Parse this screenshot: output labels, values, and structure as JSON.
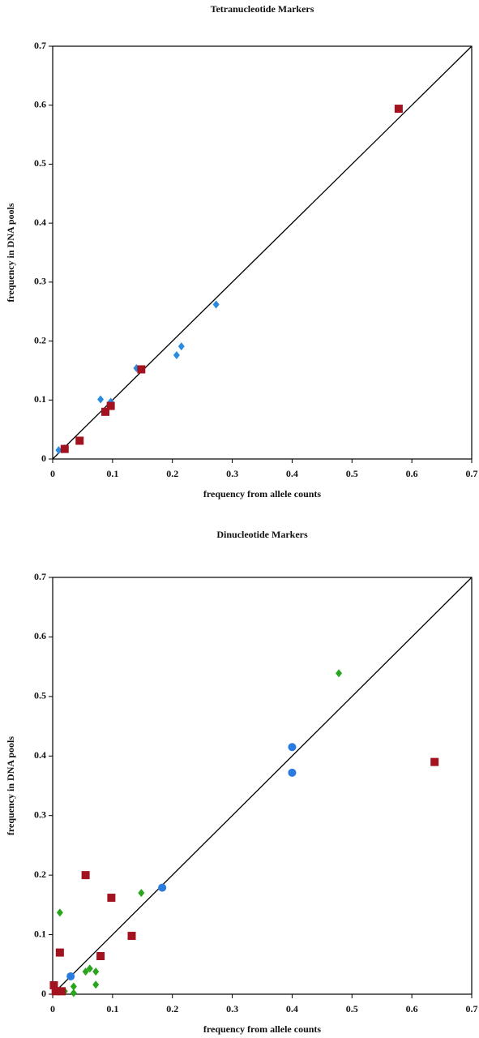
{
  "chart_data": [
    {
      "type": "scatter",
      "title": "Tetranucleotide Markers",
      "x_label": "frequency from allele counts",
      "y_label": "frequency in DNA pools",
      "xlim": [
        0,
        0.7
      ],
      "ylim": [
        0,
        0.7
      ],
      "xticks": [
        0,
        0.1,
        0.2,
        0.3,
        0.4,
        0.5,
        0.6,
        0.7
      ],
      "yticks": [
        0,
        0.1,
        0.2,
        0.3,
        0.4,
        0.5,
        0.6,
        0.7
      ],
      "series": [
        {
          "color": "#2a8be0",
          "marker": "diamond",
          "x": [
            0.01,
            0.02,
            0.08,
            0.097,
            0.14,
            0.207,
            0.215,
            0.273
          ],
          "values": [
            0.015,
            0.018,
            0.101,
            0.097,
            0.154,
            0.176,
            0.191,
            0.262
          ]
        },
        {
          "color": "#a3121f",
          "marker": "square",
          "x": [
            0.02,
            0.045,
            0.088,
            0.097,
            0.148,
            0.578
          ],
          "values": [
            0.017,
            0.031,
            0.08,
            0.09,
            0.152,
            0.594
          ]
        }
      ]
    },
    {
      "type": "scatter",
      "title": "Dinucleotide Markers",
      "x_label": "frequency from allele counts",
      "y_label": "frequency in DNA pools",
      "xlim": [
        0,
        0.7
      ],
      "ylim": [
        0,
        0.7
      ],
      "xticks": [
        0,
        0.1,
        0.2,
        0.3,
        0.4,
        0.5,
        0.6,
        0.7
      ],
      "yticks": [
        0,
        0.1,
        0.2,
        0.3,
        0.4,
        0.5,
        0.6,
        0.7
      ],
      "series": [
        {
          "color": "#28a51c",
          "marker": "diamond",
          "x": [
            0.012,
            0.005,
            0.02,
            0.035,
            0.035,
            0.055,
            0.062,
            0.072,
            0.072,
            0.148,
            0.478
          ],
          "values": [
            0.137,
            0.01,
            0.005,
            0.013,
            0.002,
            0.038,
            0.043,
            0.038,
            0.016,
            0.17,
            0.539
          ]
        },
        {
          "color": "#2a7be0",
          "marker": "circle",
          "x": [
            0.03,
            0.183,
            0.4,
            0.4
          ],
          "values": [
            0.03,
            0.179,
            0.415,
            0.372
          ]
        },
        {
          "color": "#a3121f",
          "marker": "square",
          "x": [
            0.002,
            0.005,
            0.012,
            0.015,
            0.055,
            0.098,
            0.08,
            0.132,
            0.638
          ],
          "values": [
            0.015,
            0.005,
            0.07,
            0.005,
            0.2,
            0.162,
            0.064,
            0.098,
            0.39
          ]
        }
      ]
    }
  ]
}
